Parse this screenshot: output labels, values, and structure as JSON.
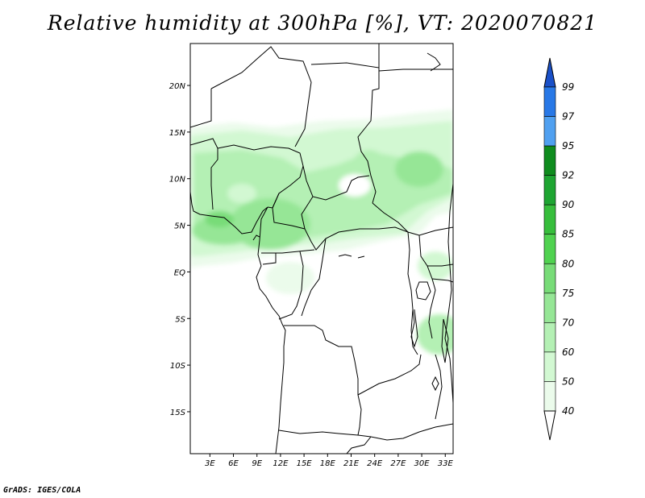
{
  "title": "Relative humidity at 300hPa [%], VT: 2020070821",
  "footer": "GrADS: IGES/COLA",
  "map": {
    "lat_range": [
      -19.5,
      24.5
    ],
    "lon_range": [
      0.5,
      34
    ],
    "lat_labels": [
      "20N",
      "15N",
      "10N",
      "5N",
      "EQ",
      "5S",
      "10S",
      "15S"
    ],
    "lon_labels": [
      "3E",
      "6E",
      "9E",
      "12E",
      "15E",
      "18E",
      "21E",
      "24E",
      "27E",
      "30E",
      "33E"
    ]
  },
  "colorbar": {
    "levels": [
      "99",
      "97",
      "95",
      "92",
      "90",
      "85",
      "80",
      "75",
      "70",
      "60",
      "50",
      "40"
    ],
    "colors": [
      "#1a50c8",
      "#2878e6",
      "#50a0f0",
      "#0f8c1e",
      "#1ea532",
      "#37be3c",
      "#50d250",
      "#78dc78",
      "#96e696",
      "#b4f0b4",
      "#d2f8d2",
      "#ebfbeb"
    ]
  }
}
